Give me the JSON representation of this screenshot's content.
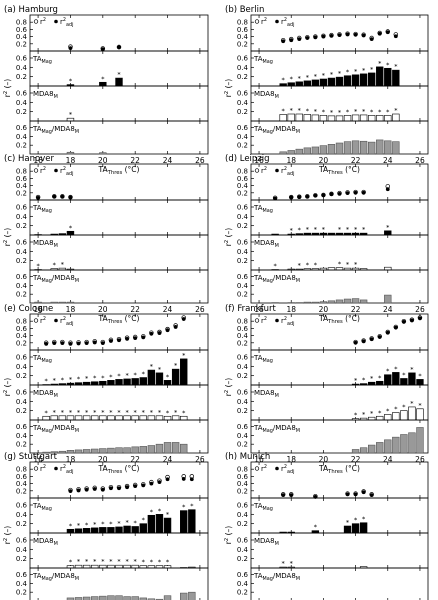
{
  "figure": {
    "r2_label": "r",
    "r2_sup": "2",
    "xlabel_main": "TA",
    "xlabel_sub": "Thres",
    "xlabel_unit": " (°C)",
    "ylabel_main": "r",
    "ylabel_sup": "2",
    "ylabel_unit": " (–)",
    "panel_labels": {
      "TA_main": "TA",
      "TA_sub": "Mag",
      "MDA_main": "MDA8",
      "MDA_sub": "M",
      "ratio_a": "TA",
      "ratio_a_sub": "Mag",
      "ratio_sep": "/MDA8",
      "ratio_b_sub": "M"
    },
    "legend": {
      "open": "r",
      "open_sup": "2",
      "filled": "r",
      "filled_sup": "2",
      "filled_sub": "adj"
    }
  },
  "chart_data": [
    {
      "type": "scatter+bar",
      "title": "(a) Hamburg",
      "xlim": [
        15.5,
        26.5
      ],
      "xticks": [
        16,
        18,
        20,
        22,
        24,
        26
      ],
      "r2": {
        "x": [
          18,
          20,
          21
        ],
        "r2": [
          0.12,
          0.07,
          0.11
        ],
        "r2adj": [
          0.08,
          0.05,
          0.1
        ]
      },
      "TA_Mag": {
        "x": [
          18,
          20,
          21
        ],
        "values": [
          0.03,
          0.08,
          0.17
        ],
        "stars": [
          18,
          20,
          21
        ]
      },
      "MDA8_M": {
        "x": [
          18
        ],
        "values": [
          0.06
        ],
        "stars": [
          18
        ]
      },
      "ratio": {
        "x": [
          18,
          20
        ],
        "values": [
          0.04,
          0.03
        ]
      }
    },
    {
      "type": "scatter+bar",
      "title": "(b) Berlin",
      "xlim": [
        15.5,
        26.5
      ],
      "xticks": [
        16,
        18,
        20,
        22,
        24,
        26
      ],
      "r2": {
        "x": [
          17.5,
          18,
          18.5,
          19,
          19.5,
          20,
          20.5,
          21,
          21.5,
          22,
          22.5,
          23,
          23.5,
          24,
          24.5
        ],
        "r2": [
          0.3,
          0.33,
          0.36,
          0.38,
          0.4,
          0.42,
          0.44,
          0.46,
          0.48,
          0.47,
          0.45,
          0.36,
          0.5,
          0.54,
          0.46
        ],
        "r2adj": [
          0.27,
          0.3,
          0.33,
          0.36,
          0.38,
          0.4,
          0.42,
          0.44,
          0.46,
          0.45,
          0.43,
          0.33,
          0.48,
          0.52,
          0.41
        ]
      },
      "TA_Mag": {
        "x": [
          17.5,
          18,
          18.5,
          19,
          19.5,
          20,
          20.5,
          21,
          21.5,
          22,
          22.5,
          23,
          23.5,
          24,
          24.5
        ],
        "values": [
          0.05,
          0.07,
          0.09,
          0.11,
          0.13,
          0.15,
          0.17,
          0.19,
          0.22,
          0.24,
          0.26,
          0.28,
          0.41,
          0.38,
          0.34
        ],
        "stars": [
          17.5,
          18,
          18.5,
          19,
          19.5,
          20,
          20.5,
          21,
          21.5,
          22,
          22.5,
          23,
          23.5,
          24,
          24.5
        ]
      },
      "MDA8_M": {
        "x": [
          17.5,
          18,
          18.5,
          19,
          19.5,
          20,
          20.5,
          21,
          21.5,
          22,
          22.5,
          23,
          23.5,
          24,
          24.5
        ],
        "values": [
          0.14,
          0.15,
          0.15,
          0.14,
          0.13,
          0.12,
          0.11,
          0.11,
          0.12,
          0.13,
          0.13,
          0.12,
          0.12,
          0.12,
          0.15
        ],
        "stars": [
          17.5,
          18,
          18.5,
          19,
          19.5,
          20,
          20.5,
          21,
          21.5,
          22,
          22.5,
          23,
          23.5,
          24,
          24.5
        ]
      },
      "ratio": {
        "x": [
          17.5,
          18,
          18.5,
          19,
          19.5,
          20,
          20.5,
          21,
          21.5,
          22,
          22.5,
          23,
          23.5,
          24,
          24.5
        ],
        "values": [
          0.05,
          0.08,
          0.11,
          0.14,
          0.16,
          0.19,
          0.22,
          0.25,
          0.28,
          0.3,
          0.29,
          0.27,
          0.32,
          0.3,
          0.28
        ]
      }
    },
    {
      "type": "scatter+bar",
      "title": "(c) Hanover",
      "xlim": [
        15.5,
        26.5
      ],
      "xticks": [
        16,
        18,
        20,
        22,
        24,
        26
      ],
      "r2": {
        "x": [
          16,
          17,
          17.5,
          18
        ],
        "r2": [
          0.08,
          0.1,
          0.1,
          0.08
        ],
        "r2adj": [
          0.06,
          0.09,
          0.09,
          0.07
        ]
      },
      "TA_Mag": {
        "x": [
          16,
          17,
          17.5,
          18
        ],
        "values": [
          0.01,
          0.02,
          0.03,
          0.08
        ],
        "stars": [
          18
        ]
      },
      "MDA8_M": {
        "x": [
          16,
          17,
          17.5,
          18
        ],
        "values": [
          0.01,
          0.03,
          0.04,
          0.02
        ],
        "stars": [
          16,
          17,
          17.5
        ]
      },
      "ratio": {
        "x": [
          16,
          17,
          17.5,
          18
        ],
        "values": [
          0.02,
          0.02,
          0.02,
          0.02
        ]
      }
    },
    {
      "type": "scatter+bar",
      "title": "(d) Leipzig",
      "xlim": [
        15.5,
        26.5
      ],
      "xticks": [
        16,
        18,
        20,
        22,
        24,
        26
      ],
      "r2": {
        "x": [
          17,
          18,
          18.5,
          19,
          19.5,
          20,
          20.5,
          21,
          21.5,
          22,
          22.5,
          24
        ],
        "r2": [
          0.06,
          0.08,
          0.09,
          0.1,
          0.13,
          0.14,
          0.17,
          0.19,
          0.21,
          0.22,
          0.22,
          0.38
        ],
        "r2adj": [
          0.04,
          0.07,
          0.08,
          0.09,
          0.12,
          0.13,
          0.16,
          0.17,
          0.19,
          0.2,
          0.2,
          0.3
        ]
      },
      "TA_Mag": {
        "x": [
          17,
          18,
          18.5,
          19,
          19.5,
          20,
          20.5,
          21,
          21.5,
          22,
          22.5,
          24
        ],
        "values": [
          0.02,
          0.02,
          0.03,
          0.04,
          0.04,
          0.04,
          0.04,
          0.04,
          0.04,
          0.04,
          0.04,
          0.09
        ],
        "stars": [
          18,
          18.5,
          19,
          19.5,
          20,
          21,
          21.5,
          22,
          22.5,
          24
        ]
      },
      "MDA8_M": {
        "x": [
          17,
          18,
          18.5,
          19,
          19.5,
          20,
          20.5,
          21,
          21.5,
          22,
          22.5,
          24
        ],
        "values": [
          0.01,
          0.02,
          0.02,
          0.03,
          0.03,
          0.04,
          0.05,
          0.05,
          0.04,
          0.04,
          0.03,
          0.06
        ],
        "stars": [
          17,
          18.5,
          19,
          19.5,
          21,
          21.5,
          22
        ]
      },
      "ratio": {
        "x": [
          17,
          18,
          18.5,
          19,
          19.5,
          20,
          20.5,
          21,
          21.5,
          22,
          22.5,
          24
        ],
        "values": [
          0.01,
          0.01,
          0.01,
          0.02,
          0.02,
          0.03,
          0.05,
          0.07,
          0.09,
          0.1,
          0.07,
          0.18
        ]
      }
    },
    {
      "type": "scatter+bar",
      "title": "(e) Cologne",
      "xlim": [
        15.5,
        26.5
      ],
      "xticks": [
        16,
        18,
        20,
        22,
        24,
        26
      ],
      "r2": {
        "x": [
          16.5,
          17,
          17.5,
          18,
          18.5,
          19,
          19.5,
          20,
          20.5,
          21,
          21.5,
          22,
          22.5,
          23,
          23.5,
          24,
          24.5,
          25
        ],
        "r2": [
          0.2,
          0.22,
          0.22,
          0.2,
          0.21,
          0.22,
          0.24,
          0.22,
          0.28,
          0.3,
          0.34,
          0.36,
          0.38,
          0.48,
          0.5,
          0.58,
          0.68,
          0.9
        ],
        "r2adj": [
          0.17,
          0.19,
          0.19,
          0.17,
          0.18,
          0.19,
          0.21,
          0.19,
          0.25,
          0.27,
          0.31,
          0.33,
          0.35,
          0.45,
          0.47,
          0.55,
          0.64,
          0.86
        ]
      },
      "TA_Mag": {
        "x": [
          16.5,
          17,
          17.5,
          18,
          18.5,
          19,
          19.5,
          20,
          20.5,
          21,
          21.5,
          22,
          22.5,
          23,
          23.5,
          24,
          24.5,
          25
        ],
        "values": [
          0.01,
          0.02,
          0.03,
          0.04,
          0.05,
          0.06,
          0.07,
          0.08,
          0.1,
          0.12,
          0.13,
          0.14,
          0.16,
          0.32,
          0.26,
          0.1,
          0.34,
          0.56
        ],
        "stars": [
          16.5,
          17,
          17.5,
          18,
          18.5,
          19,
          19.5,
          20,
          20.5,
          21,
          21.5,
          22,
          22.5,
          23,
          23.5,
          24,
          24.5,
          25
        ]
      },
      "MDA8_M": {
        "x": [
          16.5,
          17,
          17.5,
          18,
          18.5,
          19,
          19.5,
          20,
          20.5,
          21,
          21.5,
          22,
          22.5,
          23,
          23.5,
          24,
          24.5,
          25
        ],
        "values": [
          0.08,
          0.09,
          0.09,
          0.09,
          0.09,
          0.09,
          0.09,
          0.09,
          0.09,
          0.09,
          0.09,
          0.09,
          0.09,
          0.09,
          0.09,
          0.08,
          0.09,
          0.08
        ],
        "stars": [
          16.5,
          17,
          17.5,
          18,
          18.5,
          19,
          19.5,
          20,
          20.5,
          21,
          21.5,
          22,
          22.5,
          23,
          23.5,
          24,
          24.5,
          25
        ]
      },
      "ratio": {
        "x": [
          16.5,
          17,
          17.5,
          18,
          18.5,
          19,
          19.5,
          20,
          20.5,
          21,
          21.5,
          22,
          22.5,
          23,
          23.5,
          24,
          24.5,
          25
        ],
        "values": [
          0.02,
          0.03,
          0.04,
          0.06,
          0.07,
          0.08,
          0.09,
          0.1,
          0.11,
          0.12,
          0.12,
          0.14,
          0.15,
          0.17,
          0.2,
          0.24,
          0.24,
          0.2
        ]
      }
    },
    {
      "type": "scatter+bar",
      "title": "(f) Frankfurt",
      "xlim": [
        15.5,
        26.5
      ],
      "xticks": [
        16,
        18,
        20,
        22,
        24,
        26
      ],
      "r2": {
        "x": [
          22,
          22.5,
          23,
          23.5,
          24,
          24.5,
          25,
          25.5,
          26
        ],
        "r2": [
          0.22,
          0.26,
          0.32,
          0.38,
          0.5,
          0.64,
          0.8,
          0.84,
          0.9
        ],
        "r2adj": [
          0.2,
          0.24,
          0.3,
          0.36,
          0.48,
          0.62,
          0.78,
          0.82,
          0.88
        ]
      },
      "TA_Mag": {
        "x": [
          22,
          22.5,
          23,
          23.5,
          24,
          24.5,
          25,
          25.5,
          26
        ],
        "values": [
          0.02,
          0.03,
          0.06,
          0.08,
          0.22,
          0.27,
          0.14,
          0.26,
          0.12
        ],
        "stars": [
          22,
          22.5,
          23,
          23.5,
          24,
          24.5,
          25,
          25.5,
          26
        ]
      },
      "MDA8_M": {
        "x": [
          22,
          22.5,
          23,
          23.5,
          24,
          24.5,
          25,
          25.5,
          26
        ],
        "values": [
          0.03,
          0.04,
          0.06,
          0.08,
          0.12,
          0.16,
          0.2,
          0.28,
          0.24
        ],
        "stars": [
          22,
          22.5,
          23,
          23.5,
          24,
          24.5,
          25,
          25.5,
          26
        ]
      },
      "ratio": {
        "x": [
          22,
          22.5,
          23,
          23.5,
          24,
          24.5,
          25,
          25.5,
          26
        ],
        "values": [
          0.08,
          0.12,
          0.18,
          0.24,
          0.3,
          0.36,
          0.42,
          0.46,
          0.58
        ]
      }
    },
    {
      "type": "scatter+bar",
      "title": "(g) Stuttgart",
      "xlim": [
        15.5,
        26.5
      ],
      "xticks": [
        16,
        18,
        20,
        22,
        24,
        26
      ],
      "r2": {
        "x": [
          18,
          18.5,
          19,
          19.5,
          20,
          20.5,
          21,
          21.5,
          22,
          22.5,
          23,
          23.5,
          24,
          25,
          25.5
        ],
        "r2": [
          0.22,
          0.24,
          0.26,
          0.28,
          0.26,
          0.3,
          0.3,
          0.33,
          0.36,
          0.38,
          0.44,
          0.48,
          0.58,
          0.6,
          0.6
        ],
        "r2adj": [
          0.19,
          0.21,
          0.23,
          0.25,
          0.23,
          0.27,
          0.27,
          0.3,
          0.33,
          0.35,
          0.4,
          0.44,
          0.52,
          0.53,
          0.52
        ]
      },
      "TA_Mag": {
        "x": [
          18,
          18.5,
          19,
          19.5,
          20,
          20.5,
          21,
          21.5,
          22,
          22.5,
          23,
          23.5,
          24,
          25,
          25.5
        ],
        "values": [
          0.08,
          0.09,
          0.1,
          0.11,
          0.12,
          0.12,
          0.13,
          0.15,
          0.14,
          0.2,
          0.38,
          0.4,
          0.32,
          0.48,
          0.5
        ],
        "stars": [
          18,
          18.5,
          19,
          19.5,
          20,
          20.5,
          21,
          21.5,
          22,
          22.5,
          23,
          23.5,
          24,
          25,
          25.5
        ]
      },
      "MDA8_M": {
        "x": [
          18,
          18.5,
          19,
          19.5,
          20,
          20.5,
          21,
          21.5,
          22,
          22.5,
          23,
          23.5,
          24,
          25,
          25.5
        ],
        "values": [
          0.05,
          0.06,
          0.06,
          0.06,
          0.06,
          0.06,
          0.06,
          0.06,
          0.06,
          0.05,
          0.05,
          0.05,
          0.05,
          0.01,
          0.02
        ],
        "stars": [
          18,
          18.5,
          19,
          19.5,
          20,
          20.5,
          21,
          21.5,
          22,
          22.5,
          23,
          23.5,
          24
        ]
      },
      "ratio": {
        "x": [
          18,
          18.5,
          19,
          19.5,
          20,
          20.5,
          21,
          21.5,
          22,
          22.5,
          23,
          23.5,
          24,
          25,
          25.5
        ],
        "values": [
          0.07,
          0.08,
          0.09,
          0.1,
          0.11,
          0.12,
          0.12,
          0.1,
          0.1,
          0.07,
          0.05,
          0.04,
          0.12,
          0.18,
          0.2
        ]
      }
    },
    {
      "type": "scatter+bar",
      "title": "(h) Munich",
      "xlim": [
        15.5,
        26.5
      ],
      "xticks": [
        16,
        18,
        20,
        22,
        24,
        26
      ],
      "r2": {
        "x": [
          17.5,
          18,
          19.5,
          21.5,
          22,
          22.5,
          23
        ],
        "r2": [
          0.1,
          0.1,
          0.05,
          0.12,
          0.12,
          0.18,
          0.1
        ],
        "r2adj": [
          0.08,
          0.08,
          0.03,
          0.1,
          0.1,
          0.16,
          0.08
        ]
      },
      "TA_Mag": {
        "x": [
          17.5,
          18,
          19.5,
          21.5,
          22,
          22.5
        ],
        "values": [
          0.02,
          0.02,
          0.05,
          0.15,
          0.2,
          0.22
        ],
        "stars": [
          19.5,
          21.5,
          22,
          22.5
        ]
      },
      "MDA8_M": {
        "x": [
          17.5,
          18,
          22.5
        ],
        "values": [
          0.02,
          0.02,
          0.03
        ],
        "stars": [
          17.5,
          18
        ]
      },
      "ratio": {
        "x": [
          17.5,
          18,
          22.5
        ],
        "values": [
          0.01,
          0.01,
          0.01
        ]
      }
    }
  ]
}
